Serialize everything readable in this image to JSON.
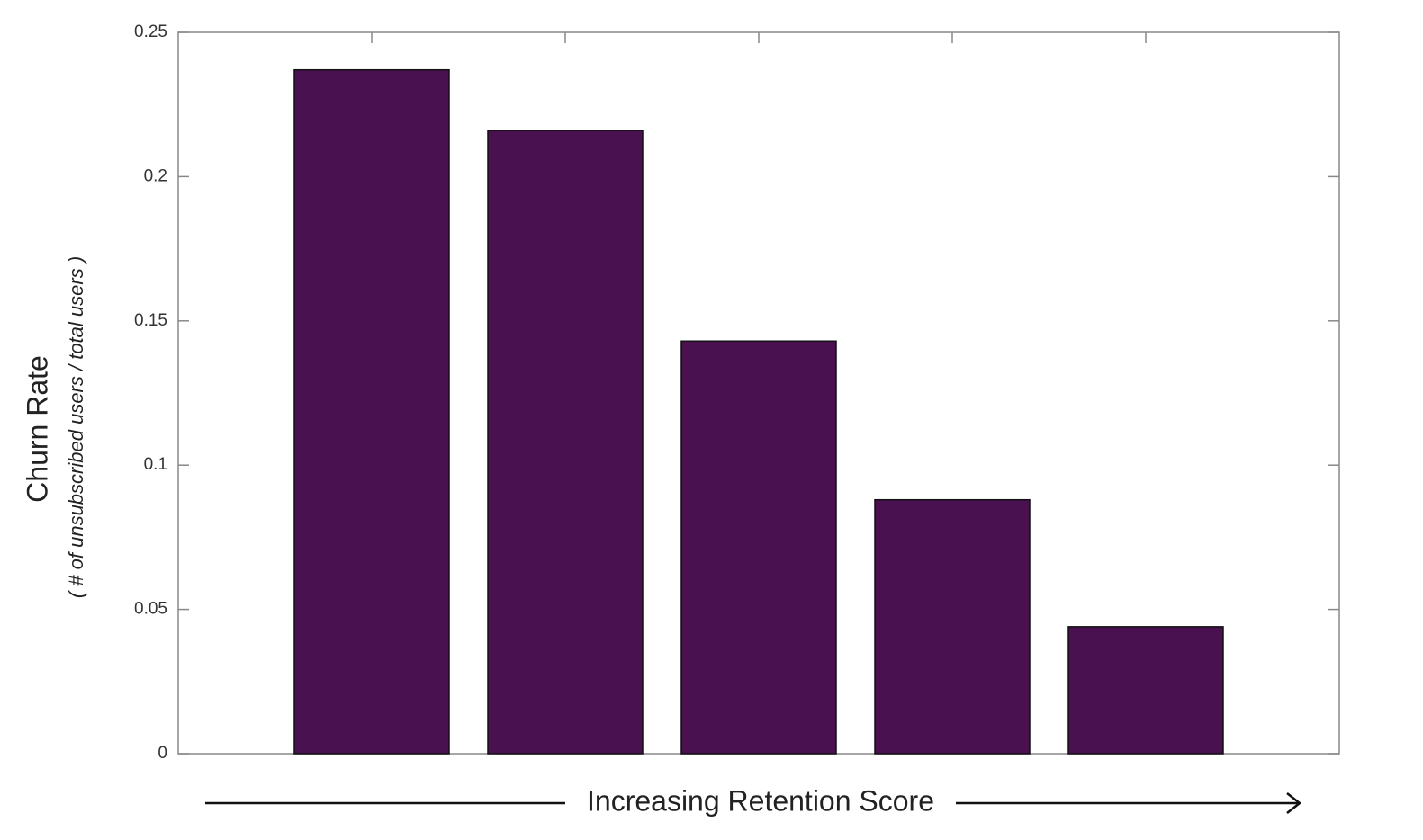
{
  "chart_data": {
    "type": "bar",
    "y_label": "Churn Rate",
    "y_sublabel": "( # of unsubscribed users / total users )",
    "x_label": "Increasing Retention Score",
    "categories": [
      null,
      null,
      null,
      null,
      null
    ],
    "values": [
      0.237,
      0.216,
      0.143,
      0.088,
      0.044
    ],
    "color": "#4a1150",
    "ylim": [
      0,
      0.25
    ],
    "yticks": [
      0,
      0.05,
      0.1,
      0.15,
      0.2,
      0.25
    ],
    "grid": false
  }
}
